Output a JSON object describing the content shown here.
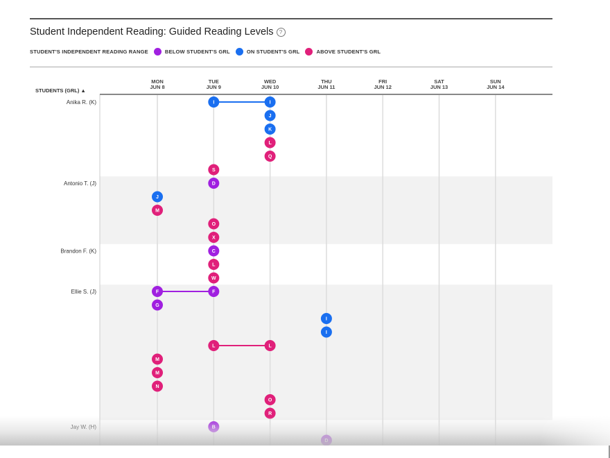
{
  "header": {
    "title": "Student Independent Reading: Guided Reading Levels",
    "help_icon": "help-circle-icon"
  },
  "legend": {
    "title": "STUDENT'S INDEPENDENT READING RANGE",
    "items": [
      {
        "label": "BELOW STUDENT'S GRL",
        "color": "#a020e0"
      },
      {
        "label": "ON STUDENT'S GRL",
        "color": "#1a6ff0"
      },
      {
        "label": "ABOVE STUDENT'S GRL",
        "color": "#e0207a"
      }
    ]
  },
  "chart_data": {
    "type": "scatter",
    "title": "Student Independent Reading: Guided Reading Levels",
    "ylabel": "STUDENTS (GRL)",
    "sort_indicator": "▲",
    "days": [
      {
        "dow": "MON",
        "date": "JUN 8"
      },
      {
        "dow": "TUE",
        "date": "JUN 9"
      },
      {
        "dow": "WED",
        "date": "JUN 10"
      },
      {
        "dow": "THU",
        "date": "JUN 11"
      },
      {
        "dow": "FRI",
        "date": "JUN 12"
      },
      {
        "dow": "SAT",
        "date": "JUN 13"
      },
      {
        "dow": "SUN",
        "date": "JUN 14"
      }
    ],
    "colors": {
      "below": "#a020e0",
      "on": "#1a6ff0",
      "above": "#e0207a"
    },
    "students": [
      {
        "name": "Anika R. (K)",
        "rows": [
          {
            "points": [
              {
                "day": 1,
                "level": "I",
                "status": "on"
              },
              {
                "day": 2,
                "level": "I",
                "status": "on"
              }
            ],
            "connected": true
          },
          {
            "points": [
              {
                "day": 2,
                "level": "J",
                "status": "on"
              }
            ]
          },
          {
            "points": [
              {
                "day": 2,
                "level": "K",
                "status": "on"
              }
            ]
          },
          {
            "points": [
              {
                "day": 2,
                "level": "L",
                "status": "above"
              }
            ]
          },
          {
            "points": [
              {
                "day": 2,
                "level": "Q",
                "status": "above"
              }
            ]
          },
          {
            "points": [
              {
                "day": 1,
                "level": "S",
                "status": "above"
              }
            ]
          }
        ]
      },
      {
        "name": "Antonio T. (J)",
        "rows": [
          {
            "points": [
              {
                "day": 1,
                "level": "D",
                "status": "below"
              }
            ]
          },
          {
            "points": [
              {
                "day": 0,
                "level": "J",
                "status": "on"
              }
            ]
          },
          {
            "points": [
              {
                "day": 0,
                "level": "M",
                "status": "above"
              }
            ]
          },
          {
            "points": [
              {
                "day": 1,
                "level": "O",
                "status": "above"
              }
            ]
          },
          {
            "points": [
              {
                "day": 1,
                "level": "X",
                "status": "above"
              }
            ]
          }
        ]
      },
      {
        "name": "Brandon F. (K)",
        "rows": [
          {
            "points": [
              {
                "day": 1,
                "level": "C",
                "status": "below"
              }
            ]
          },
          {
            "points": [
              {
                "day": 1,
                "level": "L",
                "status": "above"
              }
            ]
          },
          {
            "points": [
              {
                "day": 1,
                "level": "W",
                "status": "above"
              }
            ]
          }
        ]
      },
      {
        "name": "Ellie S. (J)",
        "rows": [
          {
            "points": [
              {
                "day": 0,
                "level": "F",
                "status": "below"
              },
              {
                "day": 1,
                "level": "F",
                "status": "below"
              }
            ],
            "connected": true
          },
          {
            "points": [
              {
                "day": 0,
                "level": "G",
                "status": "below"
              }
            ]
          },
          {
            "points": [
              {
                "day": 3,
                "level": "I",
                "status": "on"
              }
            ]
          },
          {
            "points": [
              {
                "day": 3,
                "level": "I",
                "status": "on"
              }
            ]
          },
          {
            "points": [
              {
                "day": 1,
                "level": "L",
                "status": "above"
              },
              {
                "day": 2,
                "level": "L",
                "status": "above"
              }
            ],
            "connected": true
          },
          {
            "points": [
              {
                "day": 0,
                "level": "M",
                "status": "above"
              }
            ]
          },
          {
            "points": [
              {
                "day": 0,
                "level": "M",
                "status": "above"
              }
            ]
          },
          {
            "points": [
              {
                "day": 0,
                "level": "N",
                "status": "above"
              }
            ]
          },
          {
            "points": [
              {
                "day": 2,
                "level": "O",
                "status": "above"
              }
            ]
          },
          {
            "points": [
              {
                "day": 2,
                "level": "R",
                "status": "above"
              }
            ]
          }
        ]
      },
      {
        "name": "Jay W. (H)",
        "rows": [
          {
            "points": [
              {
                "day": 1,
                "level": "B",
                "status": "below"
              }
            ]
          },
          {
            "points": [
              {
                "day": 3,
                "level": "D",
                "status": "below"
              }
            ]
          }
        ]
      }
    ]
  }
}
